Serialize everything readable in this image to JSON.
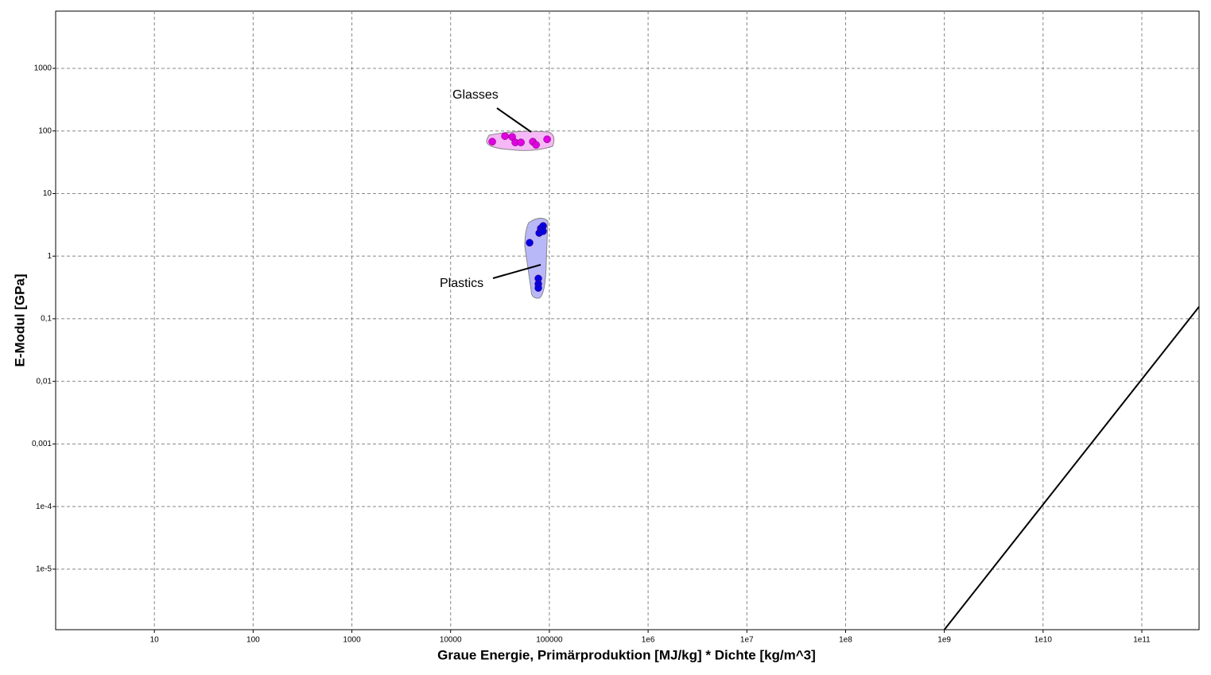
{
  "chart_data": {
    "type": "scatter",
    "x_label": "Graue Energie, Primärproduktion [MJ/kg] * Dichte [kg/m^3]",
    "y_label": "E-Modul [GPa]",
    "log_x": true,
    "log_y": true,
    "grid": true,
    "xlim": [
      1,
      380000000000
    ],
    "ylim": [
      1.08e-06,
      8200
    ],
    "xticks": [
      10,
      100,
      1000,
      10000,
      100000,
      {
        "value": 1000000,
        "label": "1e6"
      },
      {
        "value": 10000000,
        "label": "1e7"
      },
      {
        "value": 100000000,
        "label": "1e8"
      },
      {
        "value": 1000000000,
        "label": "1e9"
      },
      {
        "value": 10000000000,
        "label": "1e10"
      },
      {
        "value": 100000000000,
        "label": "1e11"
      }
    ],
    "yticks": [
      {
        "value": 1e-05,
        "label": "1e-5"
      },
      {
        "value": 0.0001,
        "label": "1e-4"
      },
      {
        "value": 0.001,
        "label": "0,001"
      },
      {
        "value": 0.01,
        "label": "0,01"
      },
      {
        "value": 0.1,
        "label": "0,1"
      },
      1,
      10,
      100,
      1000
    ],
    "series": [
      {
        "name": "Glasses",
        "color": "#e000e0",
        "x": [
          26400,
          35500,
          42000,
          45200,
          51500,
          68000,
          73300,
          94900
        ],
        "values": [
          67.4,
          82.7,
          80.3,
          65.5,
          65.5,
          67.4,
          60.0,
          73.5
        ]
      },
      {
        "name": "Plastics",
        "color": "#0000e0",
        "x": [
          63100,
          78900,
          81800,
          86500,
          86500,
          77300,
          77300,
          77300
        ],
        "values": [
          1.64,
          2.34,
          2.78,
          3.04,
          2.5,
          0.44,
          0.36,
          0.31
        ]
      }
    ],
    "guide_line": {
      "color": "#000000",
      "x": [
        1000000000,
        380000000000
      ],
      "values": [
        1.08e-06,
        0.156
      ]
    }
  }
}
